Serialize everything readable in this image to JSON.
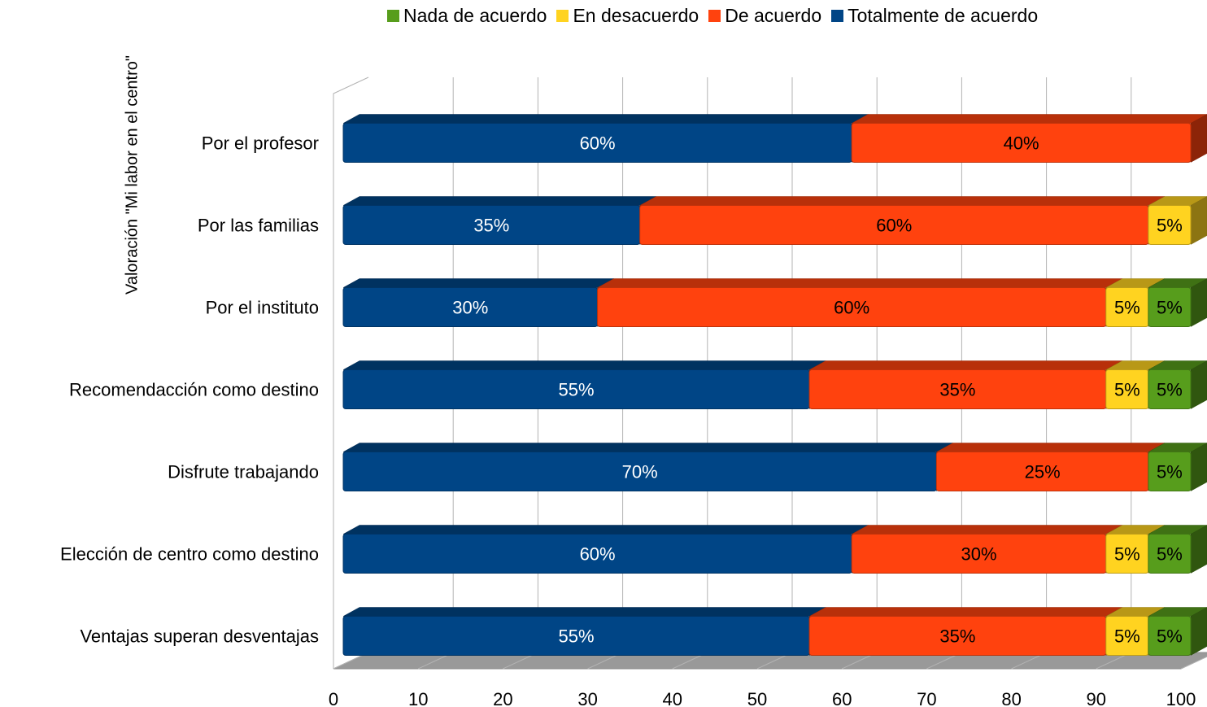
{
  "chart_data": {
    "type": "bar",
    "orientation": "horizontal",
    "stacked": true,
    "style": "3d",
    "ylabel": "Valoración \"Mi labor  en el centro\"",
    "xlabel": "",
    "title": "",
    "xlim": [
      0,
      100
    ],
    "xticks": [
      "0",
      "10",
      "20",
      "30",
      "40",
      "50",
      "60",
      "70",
      "80",
      "90",
      "100"
    ],
    "grid": true,
    "legend_position": "top",
    "categories": [
      "Por el profesor",
      "Por las familias",
      "Por el instituto",
      "Recomendacción como destino",
      "Disfrute  trabajando",
      "Elección de centro como destino",
      "Ventajas superan desventajas"
    ],
    "legend_order": [
      "Nada de acuerdo",
      "En desacuerdo",
      "De acuerdo",
      "Totalmente de acuerdo"
    ],
    "series": [
      {
        "name": "Totalmente de acuerdo",
        "color": "#004586",
        "label_color": "#ffffff",
        "values": [
          60,
          35,
          30,
          55,
          70,
          60,
          55
        ]
      },
      {
        "name": "De acuerdo",
        "color": "#ff420e",
        "label_color": "#000000",
        "values": [
          40,
          60,
          60,
          35,
          25,
          30,
          35
        ]
      },
      {
        "name": "En desacuerdo",
        "color": "#ffd320",
        "label_color": "#000000",
        "values": [
          0,
          5,
          5,
          5,
          0,
          5,
          5
        ]
      },
      {
        "name": "Nada de acuerdo",
        "color": "#579d1c",
        "label_color": "#000000",
        "values": [
          0,
          0,
          5,
          5,
          5,
          5,
          5
        ]
      }
    ],
    "data_labels": [
      [
        "60%",
        "35%",
        "30%",
        "55%",
        "70%",
        "60%",
        "55%"
      ],
      [
        "40%",
        "60%",
        "60%",
        "35%",
        "25%",
        "30%",
        "35%"
      ],
      [
        "",
        "5%",
        "5%",
        "5%",
        "",
        "5%",
        "5%"
      ],
      [
        "",
        "",
        "5%",
        "5%",
        "5%",
        "5%",
        "5%"
      ]
    ]
  }
}
